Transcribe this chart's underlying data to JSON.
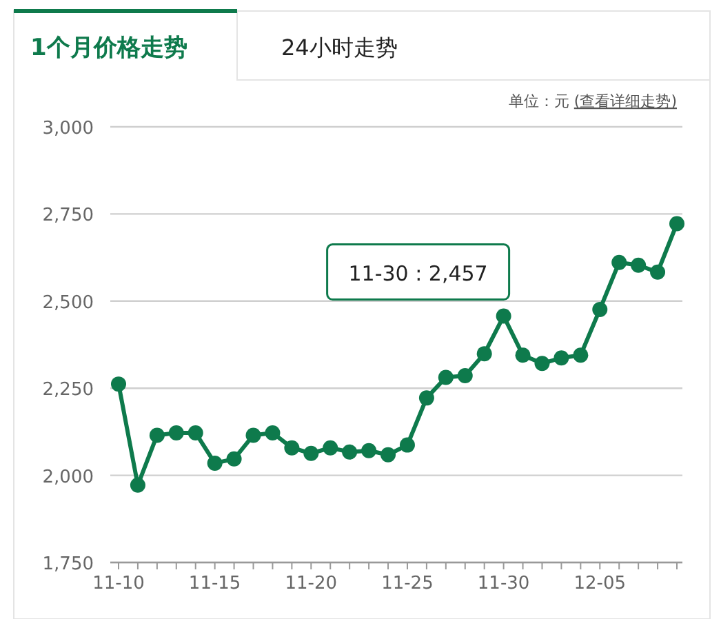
{
  "chart_data": {
    "type": "line",
    "title": "1个月价格走势",
    "annotations": [
      "24小时走势",
      "单位：元",
      "(查看详细走势)",
      {
        "text": "11-30 : 2,457",
        "x": "11-30",
        "y": 2457
      }
    ],
    "categories": [
      "11-10",
      null,
      null,
      null,
      null,
      "11-15",
      null,
      null,
      null,
      null,
      "11-20",
      null,
      null,
      null,
      null,
      "11-25",
      null,
      null,
      null,
      null,
      "11-30",
      null,
      null,
      null,
      null,
      "12-05",
      null,
      null,
      null,
      null
    ],
    "values": [
      2262,
      1972,
      2115,
      2122,
      2122,
      2035,
      2047,
      2115,
      2122,
      2079,
      2063,
      2079,
      2067,
      2071,
      2059,
      2087,
      2222,
      2281,
      2286,
      2349,
      2457,
      2345,
      2321,
      2337,
      2345,
      2476,
      2611,
      2603,
      2583,
      2722
    ],
    "color": "#0e7a4c",
    "ylim": [
      1750,
      3000
    ],
    "yticks": [
      {
        "value": 1750,
        "label": "1,750"
      },
      {
        "value": 2000,
        "label": "2,000"
      },
      {
        "value": 2250,
        "label": "2,250"
      },
      {
        "value": 2500,
        "label": "2,500"
      },
      {
        "value": 2750,
        "label": "2,750"
      },
      {
        "value": 3000,
        "label": "3,000"
      }
    ],
    "grid": "y",
    "marker": "circle",
    "line_style": "solid"
  }
}
